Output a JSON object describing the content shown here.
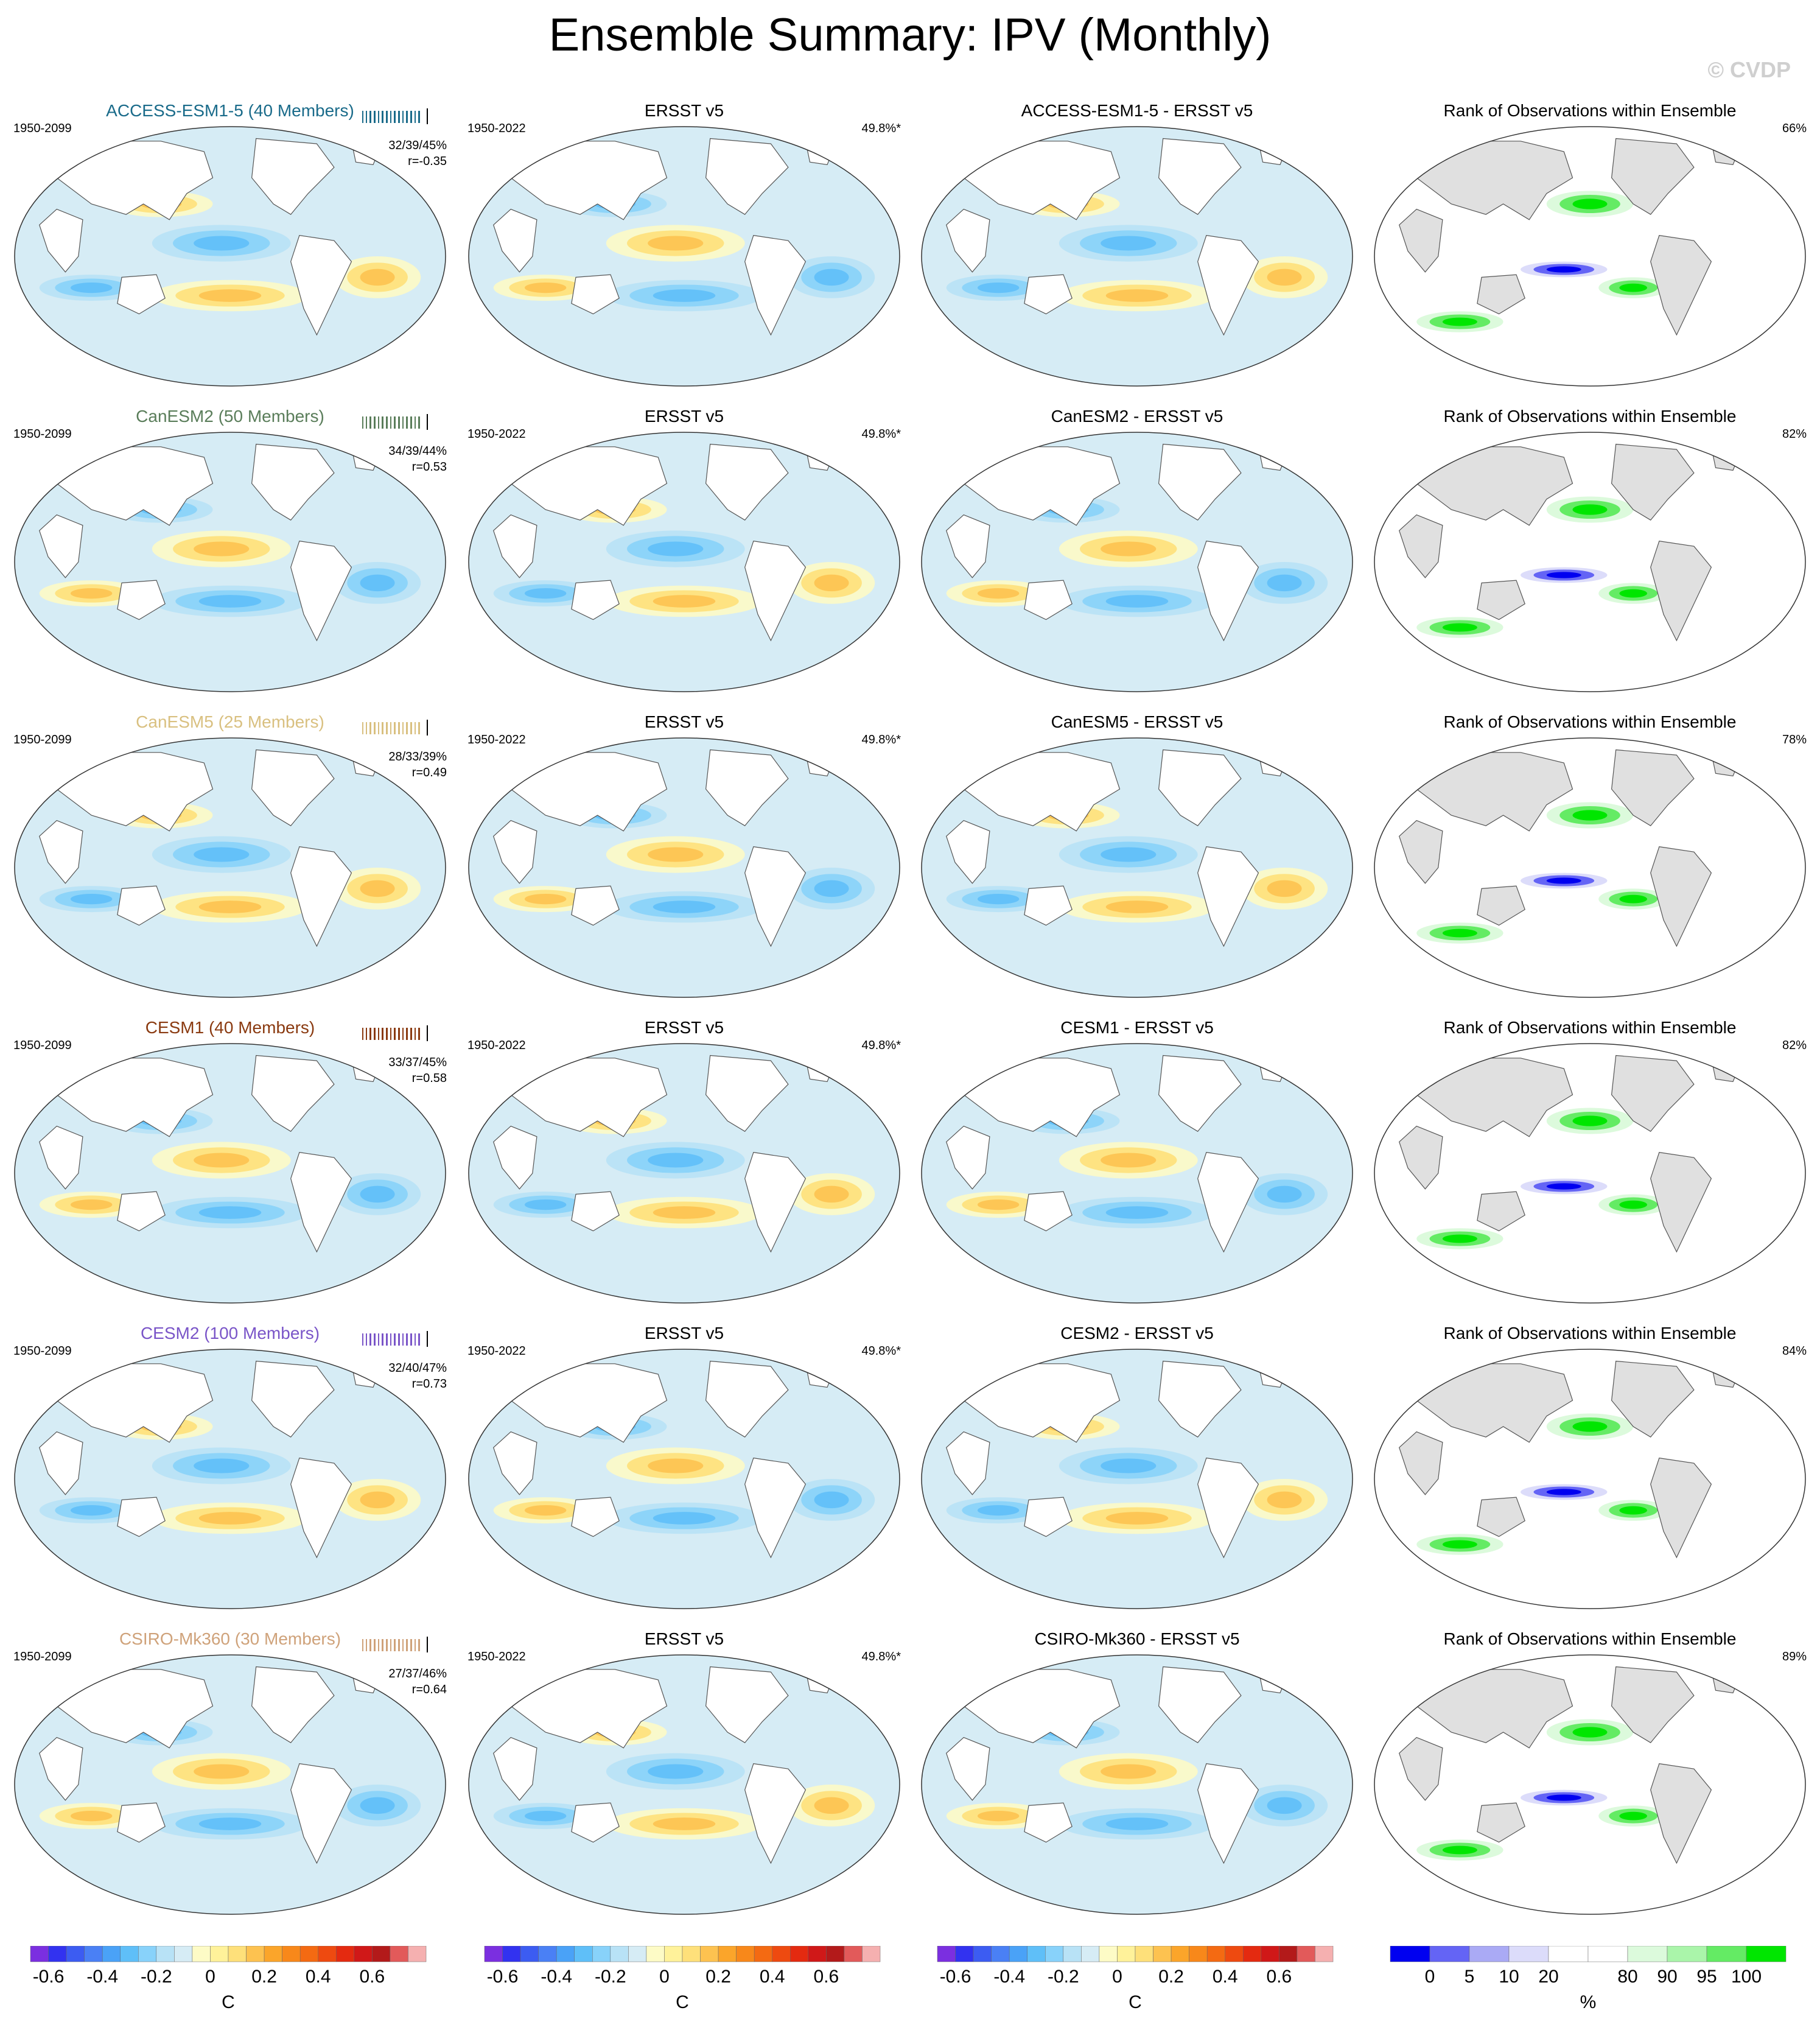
{
  "title": "Ensemble Summary: IPV (Monthly)",
  "watermark": "© CVDP",
  "rows": [
    {
      "model_title": "ACCESS-ESM1-5 (40 Members)",
      "color": "#1a6b8a",
      "period": "1950-2099",
      "stats": "32/39/45%",
      "r": "r=-0.35",
      "diff_title": "ACCESS-ESM1-5 - ERSST v5",
      "rank_pct": "66%"
    },
    {
      "model_title": "CanESM2 (50 Members)",
      "color": "#5a7d5a",
      "period": "1950-2099",
      "stats": "34/39/44%",
      "r": "r=0.53",
      "diff_title": "CanESM2 - ERSST v5",
      "rank_pct": "82%"
    },
    {
      "model_title": "CanESM5 (25 Members)",
      "color": "#d9c080",
      "period": "1950-2099",
      "stats": "28/33/39%",
      "r": "r=0.49",
      "diff_title": "CanESM5 - ERSST v5",
      "rank_pct": "78%"
    },
    {
      "model_title": "CESM1 (40 Members)",
      "color": "#8a3a10",
      "period": "1950-2099",
      "stats": "33/37/45%",
      "r": "r=0.58",
      "diff_title": "CESM1 - ERSST v5",
      "rank_pct": "82%"
    },
    {
      "model_title": "CESM2 (100 Members)",
      "color": "#7a55c8",
      "period": "1950-2099",
      "stats": "32/40/47%",
      "r": "r=0.73",
      "diff_title": "CESM2 - ERSST v5",
      "rank_pct": "84%"
    },
    {
      "model_title": "CSIRO-Mk360 (30 Members)",
      "color": "#cfa27a",
      "period": "1950-2099",
      "stats": "27/37/46%",
      "r": "r=0.64",
      "diff_title": "CSIRO-Mk360 - ERSST v5",
      "rank_pct": "89%"
    }
  ],
  "obs": {
    "title": "ERSST v5",
    "period": "1950-2022",
    "pct": "49.8%*"
  },
  "rank_title": "Rank of Observations within Ensemble",
  "colorbars": {
    "sst": {
      "unit": "C",
      "tick_labels": [
        "-0.6",
        "-0.4",
        "-0.2",
        "0",
        "0.2",
        "0.4",
        "0.6"
      ],
      "colors": [
        "#7b2fe0",
        "#3232f0",
        "#3c5cf2",
        "#4a80f5",
        "#4aa2f7",
        "#5fbff8",
        "#88d2fa",
        "#b8e2f6",
        "#d6ecf5",
        "#fdfbc6",
        "#fff29a",
        "#fee07a",
        "#fdc250",
        "#fba52a",
        "#f8881a",
        "#f46a12",
        "#ee4a10",
        "#e42a10",
        "#d01818",
        "#b31a1a",
        "#e25a5a",
        "#f5b0b0"
      ]
    },
    "rank": {
      "unit": "%",
      "tick_labels": [
        "0",
        "5",
        "10",
        "20",
        "80",
        "90",
        "95",
        "100"
      ],
      "colors": [
        "#0000f0",
        "#6464f5",
        "#aaaaf5",
        "#dcdcfa",
        "#ffffff",
        "#ffffff",
        "#dcfadc",
        "#aaf5aa",
        "#64eb64",
        "#00e600"
      ]
    }
  }
}
